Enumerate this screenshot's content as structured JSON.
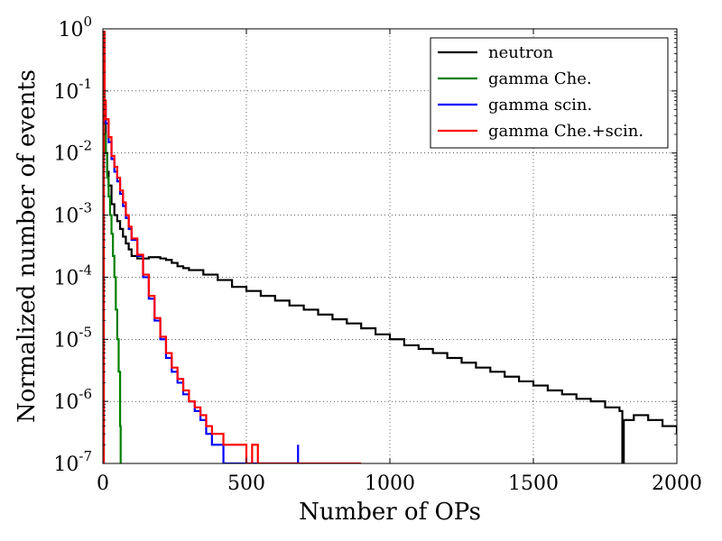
{
  "chart_data": {
    "type": "line",
    "title": "",
    "xlabel": "Number of OPs",
    "ylabel": "Normalized number of events",
    "xlim": [
      0,
      2000
    ],
    "ylim": [
      1e-07,
      1
    ],
    "yscale": "log",
    "grid": true,
    "legend_position": "top-right",
    "x_ticks": [
      0,
      500,
      1000,
      1500,
      2000
    ],
    "x_tick_labels": [
      "0",
      "500",
      "1000",
      "1500",
      "2000"
    ],
    "y_ticks": [
      1e-07,
      1e-06,
      1e-05,
      0.0001,
      0.001,
      0.01,
      0.1,
      1
    ],
    "y_tick_labels": [
      {
        "base": "10",
        "exp": "-7"
      },
      {
        "base": "10",
        "exp": "-6"
      },
      {
        "base": "10",
        "exp": "-5"
      },
      {
        "base": "10",
        "exp": "-4"
      },
      {
        "base": "10",
        "exp": "-3"
      },
      {
        "base": "10",
        "exp": "-2"
      },
      {
        "base": "10",
        "exp": "-1"
      },
      {
        "base": "10",
        "exp": "0"
      }
    ],
    "series": [
      {
        "name": "neutron",
        "color": "#000000",
        "x": [
          0,
          3,
          6,
          10,
          15,
          20,
          30,
          40,
          50,
          60,
          70,
          80,
          90,
          100,
          120,
          140,
          160,
          180,
          200,
          220,
          240,
          260,
          280,
          300,
          350,
          400,
          450,
          500,
          550,
          600,
          650,
          700,
          750,
          800,
          850,
          900,
          950,
          1000,
          1050,
          1100,
          1150,
          1200,
          1250,
          1300,
          1350,
          1400,
          1450,
          1500,
          1550,
          1600,
          1650,
          1700,
          1750,
          1800,
          1810,
          1815,
          1850,
          1900,
          1950,
          2000
        ],
        "y": [
          1e-07,
          0.8,
          0.03,
          0.01,
          0.005,
          0.003,
          0.0015,
          0.001,
          0.0008,
          0.0006,
          0.00045,
          0.00035,
          0.00028,
          0.00022,
          0.0002,
          0.0002,
          0.00021,
          0.00021,
          0.0002,
          0.00019,
          0.00017,
          0.00015,
          0.00014,
          0.00013,
          0.00011,
          9e-05,
          7e-05,
          6e-05,
          5e-05,
          4.2e-05,
          3.5e-05,
          3e-05,
          2.5e-05,
          2.1e-05,
          1.8e-05,
          1.5e-05,
          1.2e-05,
          1e-05,
          8e-06,
          7e-06,
          6e-06,
          5e-06,
          4.2e-06,
          3.5e-06,
          3e-06,
          2.5e-06,
          2.1e-06,
          1.8e-06,
          1.5e-06,
          1.3e-06,
          1.1e-06,
          1e-06,
          8e-07,
          7e-07,
          1e-07,
          5e-07,
          6e-07,
          5e-07,
          4e-07,
          3e-07
        ]
      },
      {
        "name": "gamma Che.",
        "color": "#008000",
        "x": [
          0,
          3,
          6,
          10,
          15,
          20,
          25,
          30,
          35,
          40,
          45,
          50,
          55,
          60,
          62,
          65
        ],
        "y": [
          1e-07,
          0.3,
          0.02,
          0.01,
          0.004,
          0.002,
          0.001,
          0.0005,
          0.00022,
          0.0001,
          3e-05,
          1e-05,
          3e-06,
          4e-07,
          1e-07,
          1e-07
        ]
      },
      {
        "name": "gamma scin.",
        "color": "#0000ff",
        "x": [
          0,
          3,
          6,
          10,
          20,
          30,
          40,
          50,
          60,
          70,
          80,
          90,
          100,
          120,
          140,
          160,
          180,
          200,
          220,
          240,
          260,
          280,
          300,
          320,
          340,
          360,
          380,
          400,
          420,
          440,
          460,
          480,
          500,
          520,
          540,
          560,
          580,
          600,
          620,
          640,
          660,
          680
        ],
        "y": [
          1e-07,
          0.9,
          0.06,
          0.03,
          0.015,
          0.008,
          0.005,
          0.0035,
          0.0022,
          0.0014,
          0.0009,
          0.0006,
          0.0004,
          0.00022,
          0.0001,
          4.5e-05,
          2e-05,
          1e-05,
          5e-06,
          3e-06,
          2e-06,
          1.3e-06,
          1e-06,
          7e-07,
          5e-07,
          3e-07,
          2e-07,
          2e-07,
          1e-07,
          1e-07,
          1e-07,
          1e-07,
          1e-07,
          1e-07,
          1e-07,
          1e-07,
          1e-07,
          1e-07,
          1e-07,
          1e-07,
          1e-07,
          2e-07
        ]
      },
      {
        "name": "gamma Che.+scin.",
        "color": "#ff0000",
        "x": [
          0,
          3,
          6,
          10,
          20,
          30,
          40,
          50,
          60,
          70,
          80,
          90,
          100,
          120,
          140,
          160,
          180,
          200,
          220,
          240,
          260,
          280,
          300,
          320,
          340,
          360,
          380,
          400,
          420,
          440,
          460,
          480,
          500,
          520,
          540,
          560,
          580,
          600,
          620,
          640,
          660,
          680,
          700,
          750,
          800,
          850,
          900
        ],
        "y": [
          1e-07,
          0.9,
          0.07,
          0.035,
          0.018,
          0.009,
          0.006,
          0.004,
          0.0025,
          0.0016,
          0.001,
          0.00065,
          0.00042,
          0.00023,
          0.00011,
          5e-05,
          2.2e-05,
          1.1e-05,
          6e-06,
          3.5e-06,
          2.3e-06,
          1.5e-06,
          1e-06,
          8e-07,
          6e-07,
          4e-07,
          3e-07,
          3e-07,
          2e-07,
          2e-07,
          2e-07,
          2e-07,
          1e-07,
          2e-07,
          1e-07,
          1e-07,
          1e-07,
          1e-07,
          1e-07,
          1e-07,
          1e-07,
          1e-07,
          1e-07,
          1e-07,
          1e-07,
          1e-07,
          1e-07
        ]
      }
    ]
  }
}
